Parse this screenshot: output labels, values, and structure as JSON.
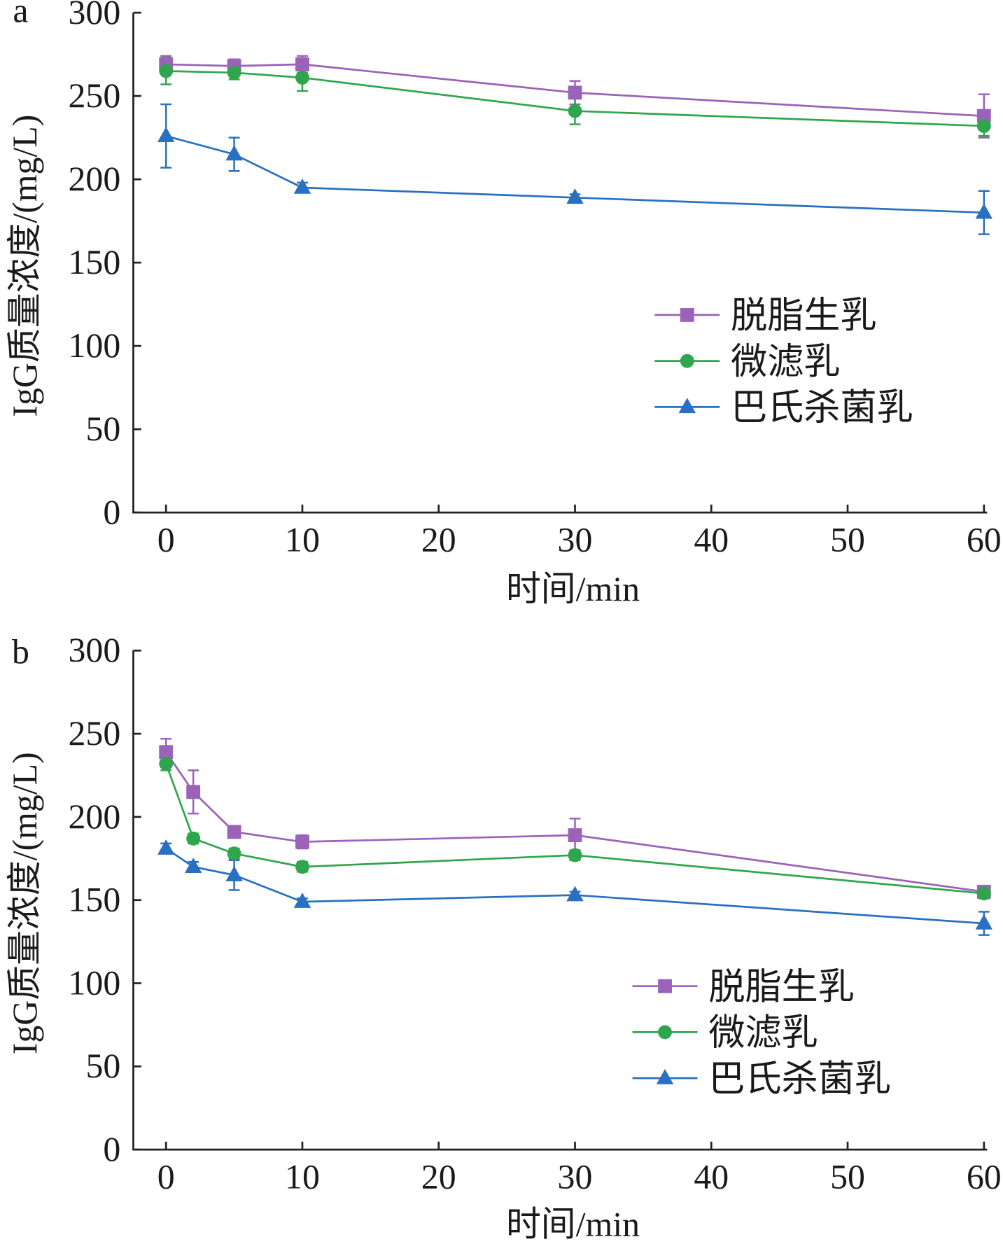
{
  "chart_data": [
    {
      "panel_label": "a",
      "type": "line",
      "xlabel": "时间/min",
      "ylabel": "IgG质量浓度/(mg/L)",
      "xlim": [
        -2.4,
        60
      ],
      "ylim": [
        0,
        300
      ],
      "xticks": [
        0,
        10,
        20,
        30,
        40,
        50,
        60
      ],
      "yticks": [
        0,
        50,
        100,
        150,
        200,
        250,
        300
      ],
      "grid": false,
      "legend_position": "right",
      "series": [
        {
          "name": "脱脂生乳",
          "marker": "square",
          "color": "#9a62b8",
          "x": [
            0,
            5,
            10,
            30,
            60
          ],
          "y": [
            269,
            268,
            269,
            252,
            238
          ],
          "error": [
            5,
            4,
            5,
            7,
            13
          ]
        },
        {
          "name": "微滤乳",
          "marker": "circle",
          "color": "#2fa64e",
          "x": [
            0,
            5,
            10,
            30,
            60
          ],
          "y": [
            265,
            264,
            261,
            241,
            232
          ],
          "error": [
            8,
            4,
            8,
            8,
            6
          ]
        },
        {
          "name": "巴氏杀菌乳",
          "marker": "triangle",
          "color": "#2a70c0",
          "x": [
            0,
            5,
            10,
            30,
            60
          ],
          "y": [
            226,
            215,
            195,
            189,
            180
          ],
          "error": [
            19,
            10,
            3,
            2,
            13
          ]
        }
      ]
    },
    {
      "panel_label": "b",
      "type": "line",
      "xlabel": "时间/min",
      "ylabel": "IgG质量浓度/(mg/L)",
      "xlim": [
        -2.4,
        60
      ],
      "ylim": [
        0,
        300
      ],
      "xticks": [
        0,
        10,
        20,
        30,
        40,
        50,
        60
      ],
      "yticks": [
        0,
        50,
        100,
        150,
        200,
        250,
        300
      ],
      "grid": false,
      "legend_position": "lower-right",
      "series": [
        {
          "name": "脱脂生乳",
          "marker": "square",
          "color": "#9a62b8",
          "x": [
            0,
            2,
            5,
            10,
            30,
            60
          ],
          "y": [
            239,
            215,
            191,
            185,
            189,
            155
          ],
          "error": [
            8,
            13,
            3,
            4,
            10,
            3
          ]
        },
        {
          "name": "微滤乳",
          "marker": "circle",
          "color": "#2fa64e",
          "x": [
            0,
            2,
            5,
            10,
            30,
            60
          ],
          "y": [
            232,
            187,
            178,
            170,
            177,
            154
          ],
          "error": [
            4,
            3,
            3,
            3,
            3,
            3
          ]
        },
        {
          "name": "巴氏杀菌乳",
          "marker": "triangle",
          "color": "#2a70c0",
          "x": [
            0,
            2,
            5,
            10,
            30,
            60
          ],
          "y": [
            181,
            170,
            165,
            149,
            153,
            136
          ],
          "error": [
            3,
            3,
            9,
            2,
            2,
            7
          ]
        }
      ]
    }
  ]
}
